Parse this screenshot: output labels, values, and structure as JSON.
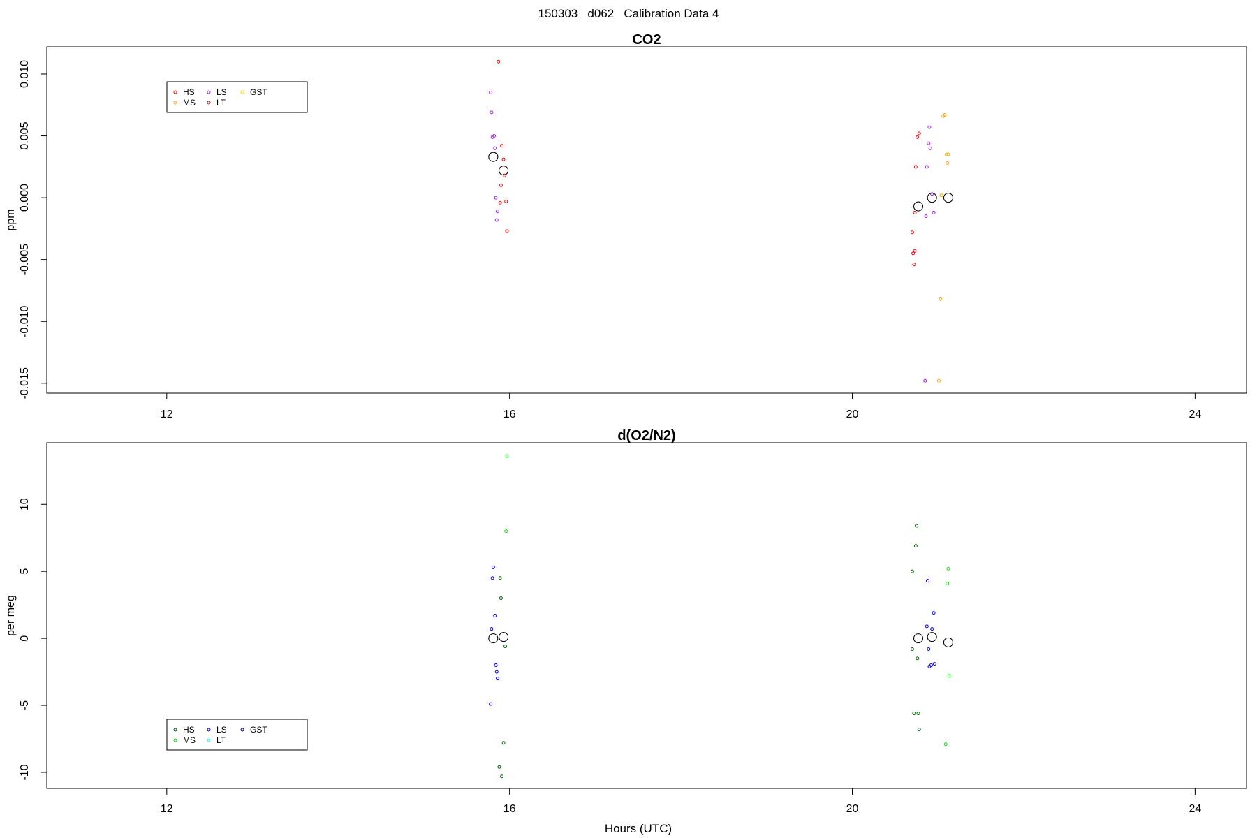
{
  "figure": {
    "main_title": "150303   d062   Calibration Data 4"
  },
  "chart_data": [
    {
      "type": "scatter",
      "title": "CO2",
      "xlabel": "",
      "ylabel": "ppm",
      "xlim": [
        10.6,
        24.6
      ],
      "ylim": [
        -0.0158,
        0.0122
      ],
      "x_ticks": [
        12,
        16,
        20,
        24
      ],
      "x_tick_labels": [
        "12",
        "16",
        "20",
        "24"
      ],
      "y_ticks": [
        -0.015,
        -0.01,
        -0.005,
        0.0,
        0.005,
        0.01
      ],
      "y_tick_labels": [
        "-0.015",
        "-0.010",
        "-0.005",
        "0.000",
        "0.005",
        "0.010"
      ],
      "grid": false,
      "legend": {
        "placement": "top-left",
        "entries": [
          {
            "label": "HS",
            "color": "#ff0000"
          },
          {
            "label": "MS",
            "color": "#ffa500"
          },
          {
            "label": "LS",
            "color": "#a020f0"
          },
          {
            "label": "LT",
            "color": "#b22222"
          },
          {
            "label": "GST",
            "color": "#ffd700"
          }
        ]
      },
      "series": [
        {
          "name": "HS",
          "color": "#ff0000",
          "points": [
            [
              15.87,
              0.011
            ],
            [
              15.91,
              0.0042
            ],
            [
              15.93,
              0.0031
            ],
            [
              15.94,
              0.0018
            ],
            [
              15.9,
              0.001
            ],
            [
              15.89,
              -0.0004
            ],
            [
              15.96,
              -0.0003
            ],
            [
              15.97,
              -0.0027
            ],
            [
              20.78,
              0.0052
            ],
            [
              20.76,
              0.0049
            ],
            [
              20.74,
              0.0025
            ],
            [
              20.73,
              -0.0012
            ],
            [
              20.7,
              -0.0028
            ],
            [
              20.71,
              -0.0045
            ],
            [
              20.73,
              -0.0043
            ],
            [
              20.72,
              -0.0054
            ]
          ]
        },
        {
          "name": "MS",
          "color": "#ffa500",
          "points": [
            [
              21.08,
              0.0067
            ],
            [
              21.06,
              0.0066
            ],
            [
              21.1,
              0.0035
            ],
            [
              21.12,
              0.0035
            ],
            [
              21.11,
              0.0028
            ],
            [
              21.04,
              0.0002
            ],
            [
              21.03,
              -0.0082
            ],
            [
              21.01,
              -0.0148
            ]
          ]
        },
        {
          "name": "LS",
          "color": "#a020f0",
          "points": [
            [
              15.78,
              0.0085
            ],
            [
              15.79,
              0.0069
            ],
            [
              15.8,
              0.0049
            ],
            [
              15.82,
              0.005
            ],
            [
              15.83,
              0.004
            ],
            [
              15.84,
              0.0
            ],
            [
              15.86,
              -0.0011
            ],
            [
              15.85,
              -0.0018
            ],
            [
              20.9,
              0.0057
            ],
            [
              20.89,
              0.0044
            ],
            [
              20.91,
              0.004
            ],
            [
              20.87,
              0.0025
            ],
            [
              20.93,
              0.0003
            ],
            [
              20.95,
              -0.0012
            ],
            [
              20.86,
              -0.0015
            ],
            [
              20.85,
              -0.0148
            ]
          ]
        },
        {
          "name": "Mean",
          "color": "#000000",
          "points": [
            [
              15.81,
              0.0033
            ],
            [
              15.93,
              0.0022
            ],
            [
              20.77,
              -0.0007
            ],
            [
              20.93,
              0.0
            ],
            [
              21.12,
              0.0
            ]
          ]
        }
      ]
    },
    {
      "type": "scatter",
      "title": "d(O2/N2)",
      "xlabel": "Hours (UTC)",
      "ylabel": "per meg",
      "xlim": [
        10.6,
        24.6
      ],
      "ylim": [
        -11.2,
        14.6
      ],
      "x_ticks": [
        12,
        16,
        20,
        24
      ],
      "x_tick_labels": [
        "12",
        "16",
        "20",
        "24"
      ],
      "y_ticks": [
        -10,
        -5,
        0,
        5,
        10
      ],
      "y_tick_labels": [
        "-10",
        "-5",
        "0",
        "5",
        "10"
      ],
      "grid": false,
      "legend": {
        "placement": "bottom-left",
        "entries": [
          {
            "label": "HS",
            "color": "#006400"
          },
          {
            "label": "MS",
            "color": "#00ee00"
          },
          {
            "label": "LS",
            "color": "#0000ff"
          },
          {
            "label": "LT",
            "color": "#00ffff"
          },
          {
            "label": "GST",
            "color": "#00008b"
          }
        ]
      },
      "series": [
        {
          "name": "HS",
          "color": "#006400",
          "points": [
            [
              15.89,
              4.5
            ],
            [
              15.9,
              3.0
            ],
            [
              15.95,
              -0.6
            ],
            [
              15.93,
              -7.8
            ],
            [
              15.88,
              -9.6
            ],
            [
              15.91,
              -10.3
            ],
            [
              20.75,
              8.4
            ],
            [
              20.74,
              6.9
            ],
            [
              20.7,
              5.0
            ],
            [
              20.7,
              -0.8
            ],
            [
              20.76,
              -1.5
            ],
            [
              20.72,
              -5.6
            ],
            [
              20.77,
              -5.6
            ],
            [
              20.78,
              -6.8
            ]
          ]
        },
        {
          "name": "MS",
          "color": "#00ee00",
          "points": [
            [
              15.97,
              13.6
            ],
            [
              15.96,
              8.0
            ],
            [
              21.12,
              5.2
            ],
            [
              21.11,
              4.1
            ],
            [
              21.13,
              -2.8
            ],
            [
              21.09,
              -7.9
            ]
          ]
        },
        {
          "name": "LS",
          "color": "#0000ff",
          "points": [
            [
              15.81,
              5.3
            ],
            [
              15.8,
              4.5
            ],
            [
              15.83,
              1.7
            ],
            [
              15.79,
              0.7
            ],
            [
              15.84,
              -2.0
            ],
            [
              15.85,
              -2.5
            ],
            [
              15.86,
              -3.0
            ],
            [
              15.78,
              -4.9
            ],
            [
              20.88,
              4.3
            ],
            [
              20.95,
              1.9
            ],
            [
              20.87,
              0.9
            ],
            [
              20.93,
              0.7
            ],
            [
              20.89,
              -0.8
            ],
            [
              20.9,
              -2.1
            ],
            [
              20.92,
              -2.0
            ],
            [
              20.96,
              -1.9
            ]
          ]
        },
        {
          "name": "Mean",
          "color": "#000000",
          "points": [
            [
              15.81,
              0.0
            ],
            [
              15.93,
              0.1
            ],
            [
              20.77,
              0.0
            ],
            [
              20.93,
              0.1
            ],
            [
              21.12,
              -0.3
            ]
          ]
        }
      ]
    }
  ]
}
